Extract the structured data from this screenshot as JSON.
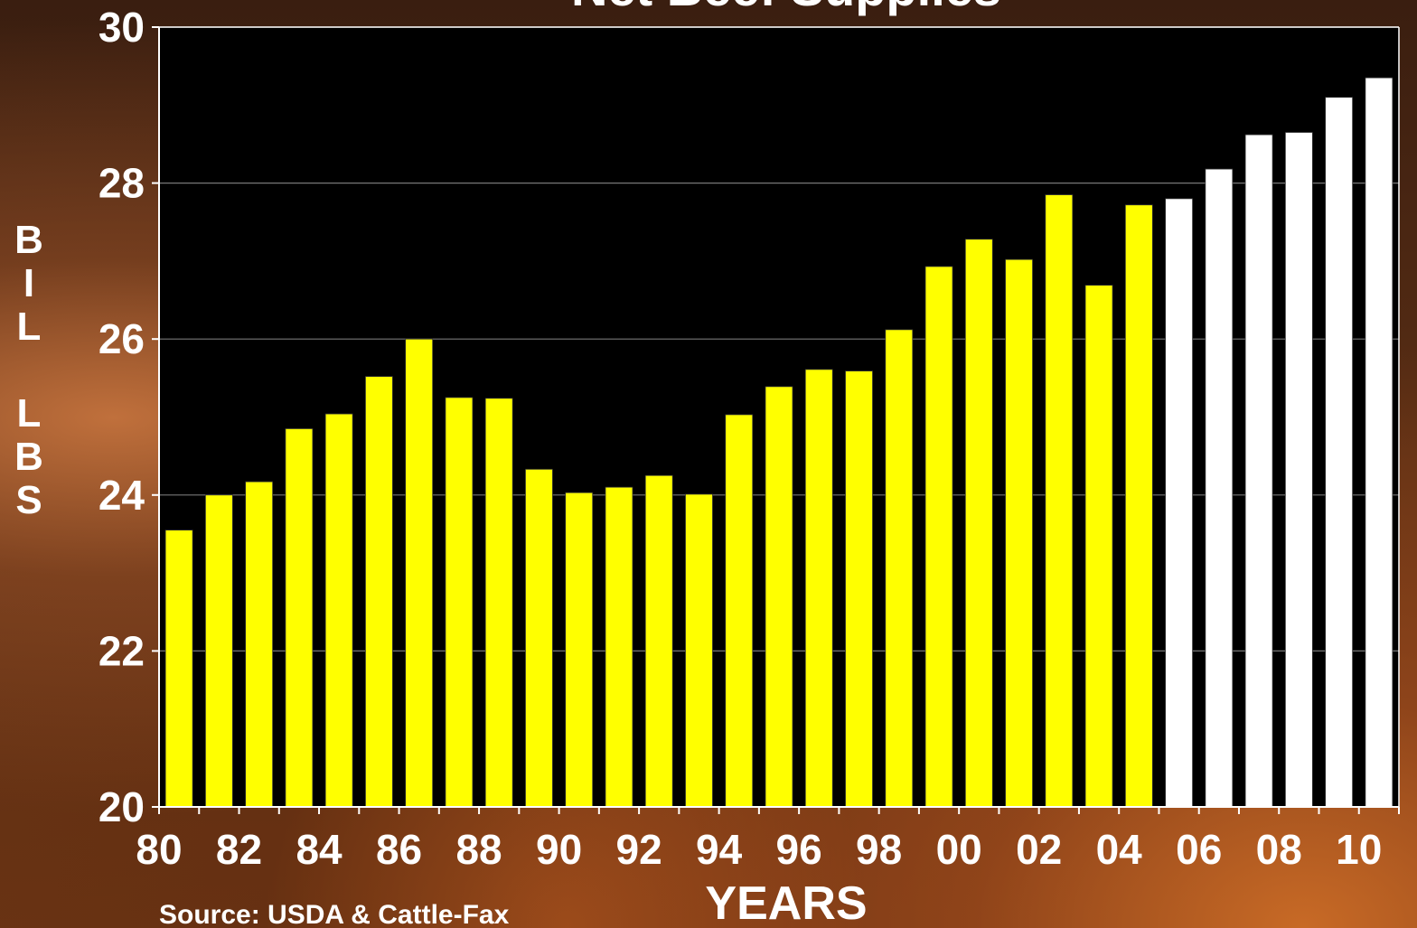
{
  "chart_data": {
    "type": "bar",
    "title": "Net Beef Supplies",
    "xlabel": "YEARS",
    "ylabel": "BIL LBS",
    "source": "Source:  USDA & Cattle-Fax",
    "ylim": [
      20,
      30
    ],
    "yticks": [
      "20",
      "22",
      "24",
      "26",
      "28",
      "30"
    ],
    "xticks": [
      "80",
      "82",
      "84",
      "86",
      "88",
      "90",
      "92",
      "94",
      "96",
      "98",
      "00",
      "02",
      "04",
      "06",
      "08",
      "10"
    ],
    "grid": true,
    "categories": [
      "1980",
      "1981",
      "1982",
      "1983",
      "1984",
      "1985",
      "1986",
      "1987",
      "1988",
      "1989",
      "1990",
      "1991",
      "1992",
      "1993",
      "1994",
      "1995",
      "1996",
      "1997",
      "1998",
      "1999",
      "2000",
      "2001",
      "2002",
      "2003",
      "2004",
      "2005",
      "2006",
      "2007",
      "2008",
      "2009",
      "2010"
    ],
    "series": [
      {
        "values": [
          23.55,
          24.0,
          24.17,
          24.85,
          25.04,
          25.52,
          26.0,
          25.25,
          25.24,
          24.33,
          24.03,
          24.1,
          24.25,
          24.01,
          25.03,
          25.39,
          25.61,
          25.59,
          26.12,
          26.93,
          27.28,
          27.02,
          27.85,
          26.69,
          27.72,
          null,
          null,
          null,
          null,
          null,
          null
        ],
        "color": "#ffff00"
      },
      {
        "values": [
          null,
          null,
          null,
          null,
          null,
          null,
          null,
          null,
          null,
          null,
          null,
          null,
          null,
          null,
          null,
          null,
          null,
          null,
          null,
          null,
          null,
          null,
          null,
          null,
          null,
          27.8,
          28.18,
          28.62,
          28.65,
          29.1,
          29.35
        ],
        "color": "#ffffff"
      }
    ]
  }
}
